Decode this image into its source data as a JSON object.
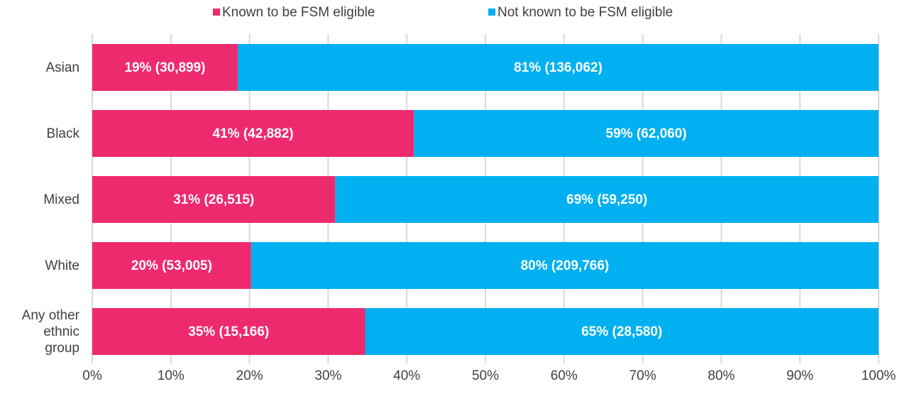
{
  "chart_data": {
    "type": "stacked-barh",
    "categories": [
      "Asian",
      "Black",
      "Mixed",
      "White",
      "Any other ethnic group"
    ],
    "series": [
      {
        "name": "Known to be FSM eligible",
        "color": "#ee2a6f",
        "values": [
          18.5,
          40.9,
          30.9,
          20.2,
          34.7
        ],
        "value_labels": [
          "19% (30,899)",
          "41% (42,882)",
          "31% (26,515)",
          "20% (53,005)",
          "35% (15,166)"
        ]
      },
      {
        "name": "Not known to be FSM eligible",
        "color": "#00b0f0",
        "values": [
          81.5,
          59.1,
          69.1,
          79.8,
          65.3
        ],
        "value_labels": [
          "81% (136,062)",
          "59% (62,060)",
          "69% (59,250)",
          "80% (209,766)",
          "65% (28,580)"
        ]
      }
    ],
    "xlim": [
      0,
      100
    ],
    "xticks": [
      {
        "value": 0,
        "label": "0%"
      },
      {
        "value": 10,
        "label": "10%"
      },
      {
        "value": 20,
        "label": "20%"
      },
      {
        "value": 30,
        "label": "30%"
      },
      {
        "value": 40,
        "label": "40%"
      },
      {
        "value": 50,
        "label": "50%"
      },
      {
        "value": 60,
        "label": "60%"
      },
      {
        "value": 70,
        "label": "70%"
      },
      {
        "value": 80,
        "label": "80%"
      },
      {
        "value": 90,
        "label": "90%"
      },
      {
        "value": 100,
        "label": "100%"
      }
    ],
    "grid": true,
    "legend": "top"
  }
}
